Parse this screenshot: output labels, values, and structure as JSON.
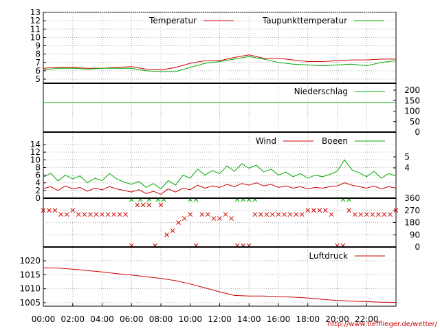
{
  "chart_data": {
    "type": "line",
    "x_ticks": [
      "00:00",
      "02:00",
      "04:00",
      "06:00",
      "08:00",
      "10:00",
      "12:00",
      "14:00",
      "16:00",
      "18:00",
      "20:00",
      "22:00"
    ],
    "source_url": "http://www.tiefflieger.de/wetter/",
    "colors": {
      "red": "#cc0000",
      "green": "#00aa00"
    },
    "panels": [
      {
        "id": "temperature",
        "yticks": [
          "5",
          "6",
          "7",
          "8",
          "9",
          "10",
          "11",
          "12",
          "13"
        ],
        "ylim": [
          5,
          13
        ],
        "legend": [
          "Temperatur",
          "Taupunkttemperatur"
        ],
        "series": [
          {
            "name": "Temperatur",
            "color": "red",
            "x": [
              0,
              1,
              2,
              3,
              4,
              5,
              6,
              7,
              8,
              9,
              10,
              11,
              12,
              13,
              14,
              15,
              16,
              17,
              18,
              19,
              20,
              21,
              22,
              23,
              24
            ],
            "values": [
              6.3,
              6.4,
              6.4,
              6.3,
              6.3,
              6.4,
              6.5,
              6.2,
              6.1,
              6.4,
              6.9,
              7.2,
              7.2,
              7.6,
              7.9,
              7.5,
              7.5,
              7.3,
              7.1,
              7.1,
              7.2,
              7.3,
              7.3,
              7.4,
              7.4
            ]
          },
          {
            "name": "Taupunkttemperatur",
            "color": "green",
            "x": [
              0,
              1,
              2,
              3,
              4,
              5,
              6,
              7,
              8,
              9,
              10,
              11,
              12,
              13,
              14,
              15,
              16,
              17,
              18,
              19,
              20,
              21,
              22,
              23,
              24
            ],
            "values": [
              6.1,
              6.3,
              6.3,
              6.2,
              6.3,
              6.3,
              6.3,
              6.0,
              5.9,
              5.9,
              6.4,
              6.9,
              7.1,
              7.4,
              7.7,
              7.4,
              7.0,
              6.8,
              6.7,
              6.6,
              6.7,
              6.8,
              6.6,
              7.0,
              7.2
            ]
          }
        ]
      },
      {
        "id": "precipitation",
        "yticks": [
          "0",
          "50",
          "100",
          "150",
          "200"
        ],
        "ylim": [
          0,
          250
        ],
        "legend": [
          "Niederschlag"
        ],
        "series": [
          {
            "name": "Niederschlag",
            "color": "green",
            "x": [
              0,
              24
            ],
            "values": [
              140,
              140
            ]
          }
        ]
      },
      {
        "id": "wind",
        "yticks": [
          "0",
          "2",
          "4",
          "6",
          "8",
          "10",
          "12",
          "14"
        ],
        "ylim": [
          0,
          14
        ],
        "right_ticks": [
          "4",
          "5"
        ],
        "legend": [
          "Wind",
          "Boeen"
        ],
        "series": [
          {
            "name": "Wind",
            "color": "red",
            "x": [
              0,
              0.5,
              1,
              1.5,
              2,
              2.5,
              3,
              3.5,
              4,
              4.5,
              5,
              5.5,
              6,
              6.5,
              7,
              7.5,
              8,
              8.5,
              9,
              9.5,
              10,
              10.5,
              11,
              11.5,
              12,
              12.5,
              13,
              13.5,
              14,
              14.5,
              15,
              15.5,
              16,
              16.5,
              17,
              17.5,
              18,
              18.5,
              19,
              19.5,
              20,
              20.5,
              21,
              21.5,
              22,
              22.5,
              23,
              23.5,
              24
            ],
            "values": [
              2.5,
              3.0,
              2.0,
              3.2,
              2.4,
              2.8,
              1.8,
              2.6,
              2.2,
              3.0,
              2.4,
              2.0,
              1.6,
              2.2,
              1.2,
              1.8,
              1.0,
              2.4,
              1.6,
              2.6,
              2.2,
              3.4,
              2.6,
              3.2,
              2.8,
              3.6,
              3.0,
              3.8,
              3.4,
              4.0,
              3.2,
              3.6,
              2.8,
              3.2,
              2.6,
              3.0,
              2.4,
              2.8,
              2.6,
              3.0,
              3.2,
              4.0,
              3.4,
              3.0,
              2.6,
              3.2,
              2.4,
              3.0,
              2.6
            ]
          },
          {
            "name": "Boeen",
            "color": "green",
            "x": [
              0,
              0.5,
              1,
              1.5,
              2,
              2.5,
              3,
              3.5,
              4,
              4.5,
              5,
              5.5,
              6,
              6.5,
              7,
              7.5,
              8,
              8.5,
              9,
              9.5,
              10,
              10.5,
              11,
              11.5,
              12,
              12.5,
              13,
              13.5,
              14,
              14.5,
              15,
              15.5,
              16,
              16.5,
              17,
              17.5,
              18,
              18.5,
              19,
              19.5,
              20,
              20.5,
              21,
              21.5,
              22,
              22.5,
              23,
              23.5,
              24
            ],
            "values": [
              5.5,
              6.5,
              4.5,
              6.0,
              5.0,
              5.8,
              4.0,
              5.2,
              4.6,
              6.4,
              5.0,
              4.2,
              3.6,
              4.4,
              2.8,
              3.8,
              2.4,
              4.6,
              3.4,
              6.0,
              5.2,
              7.6,
              6.0,
              7.2,
              6.4,
              8.4,
              7.0,
              9.0,
              7.8,
              8.6,
              6.8,
              7.6,
              6.0,
              6.8,
              5.6,
              6.4,
              5.2,
              6.0,
              5.6,
              6.2,
              7.0,
              10.0,
              7.4,
              6.6,
              5.6,
              7.0,
              5.2,
              6.4,
              5.8
            ]
          }
        ]
      },
      {
        "id": "wind_direction",
        "type": "scatter",
        "yticks": [
          "0",
          "90",
          "180",
          "270",
          "360"
        ],
        "ylim": [
          0,
          360
        ],
        "series": [
          {
            "name": "",
            "color": "red",
            "x": [
              0,
              0.4,
              0.8,
              1.2,
              1.6,
              2.0,
              2.4,
              2.8,
              3.2,
              3.6,
              4.0,
              4.4,
              4.8,
              5.2,
              5.6,
              6.0,
              6.4,
              6.8,
              7.2,
              7.6,
              8.0,
              8.4,
              8.8,
              9.2,
              9.6,
              10.0,
              10.4,
              10.8,
              11.2,
              11.6,
              12.0,
              12.4,
              12.8,
              13.2,
              13.6,
              14.0,
              14.4,
              14.8,
              15.2,
              15.6,
              16.0,
              16.4,
              16.8,
              17.2,
              17.6,
              18.0,
              18.4,
              18.8,
              19.2,
              19.6,
              20.0,
              20.4,
              20.8,
              21.2,
              21.6,
              22.0,
              22.4,
              22.8,
              23.2,
              23.6,
              24.0
            ],
            "values": [
              270,
              270,
              270,
              240,
              240,
              270,
              240,
              240,
              240,
              240,
              240,
              240,
              240,
              240,
              240,
              0,
              310,
              310,
              310,
              0,
              310,
              90,
              120,
              180,
              210,
              240,
              0,
              240,
              240,
              210,
              210,
              240,
              210,
              0,
              0,
              0,
              240,
              240,
              240,
              240,
              240,
              240,
              240,
              240,
              240,
              270,
              270,
              270,
              270,
              240,
              0,
              0,
              270,
              240,
              240,
              240,
              240,
              240,
              240,
              240,
              270
            ]
          },
          {
            "name": "",
            "color": "green",
            "x": [
              6.0,
              6.6,
              7.2,
              7.8,
              8.2,
              10.0,
              10.4,
              13.2,
              13.6,
              14.0,
              14.4,
              20.4,
              20.8
            ],
            "values": [
              360,
              360,
              360,
              360,
              360,
              360,
              360,
              360,
              360,
              360,
              360,
              360,
              360
            ]
          }
        ]
      },
      {
        "id": "pressure",
        "yticks": [
          "1005",
          "1010",
          "1015",
          "1020"
        ],
        "ylim": [
          1004,
          1024
        ],
        "legend": [
          "Luftdruck"
        ],
        "series": [
          {
            "name": "Luftdruck",
            "color": "red",
            "x": [
              0,
              1,
              2,
              3,
              4,
              5,
              6,
              7,
              8,
              9,
              10,
              11,
              12,
              13,
              14,
              15,
              16,
              17,
              18,
              19,
              20,
              21,
              22,
              23,
              24
            ],
            "values": [
              1017.5,
              1017.4,
              1017.0,
              1016.5,
              1016.0,
              1015.4,
              1014.9,
              1014.3,
              1013.7,
              1012.9,
              1011.7,
              1010.3,
              1008.9,
              1007.6,
              1007.4,
              1007.4,
              1007.2,
              1007.0,
              1006.7,
              1006.2,
              1005.8,
              1005.6,
              1005.4,
              1005.2,
              1005.1
            ]
          }
        ]
      }
    ]
  }
}
